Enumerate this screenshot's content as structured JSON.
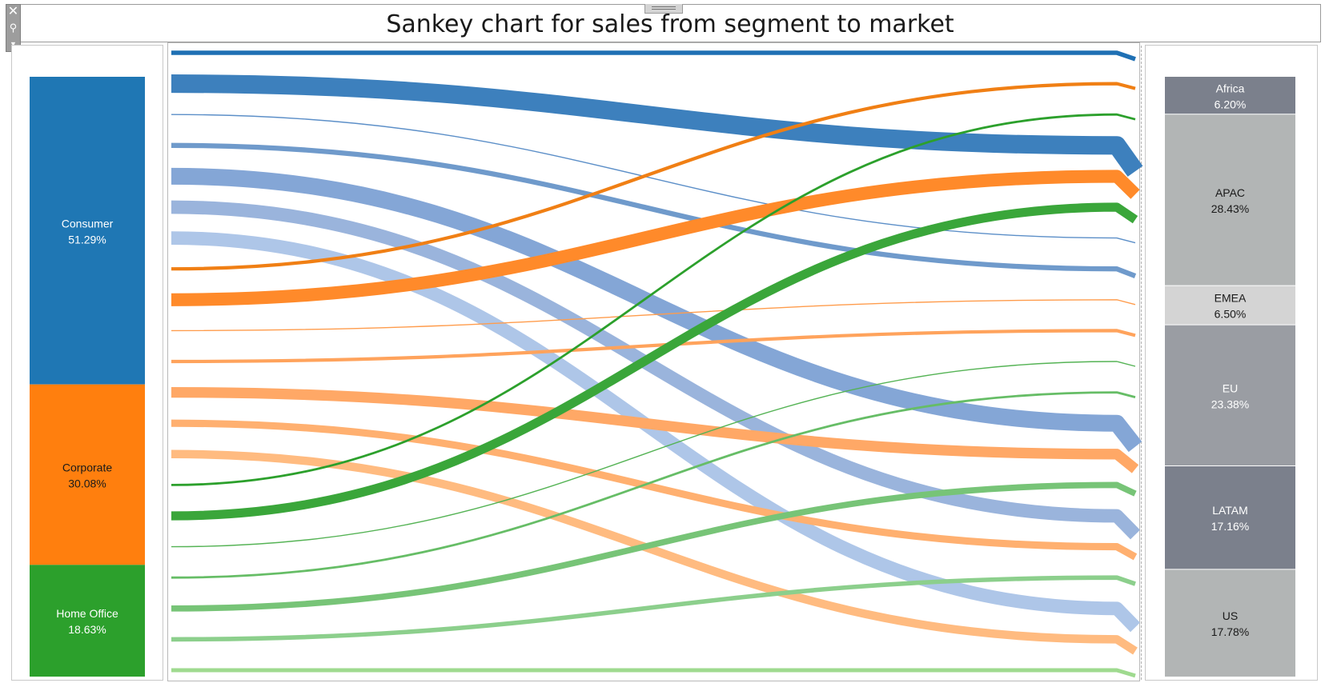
{
  "title": "Sankey chart for sales from segment to market",
  "toolbar": {
    "close_glyph": "✕",
    "pin_glyph": "⚲",
    "menu_glyph": "▼"
  },
  "chart_data": {
    "type": "sankey",
    "title": "Sankey chart for sales from segment to market",
    "sources": [
      {
        "name": "Consumer",
        "value": 51.29,
        "label": "51.29%",
        "color": "#1f77b4",
        "text_color": "#ffffff"
      },
      {
        "name": "Corporate",
        "value": 30.08,
        "label": "30.08%",
        "color": "#ff7f0e",
        "text_color": "#1a1a1a"
      },
      {
        "name": "Home Office",
        "value": 18.63,
        "label": "18.63%",
        "color": "#2ca02c",
        "text_color": "#ffffff"
      }
    ],
    "targets": [
      {
        "name": "Africa",
        "value": 6.2,
        "label": "6.20%",
        "color": "#7b808c",
        "text_color": "#ffffff"
      },
      {
        "name": "APAC",
        "value": 28.43,
        "label": "28.43%",
        "color": "#b2b5b5",
        "text_color": "#1a1a1a"
      },
      {
        "name": "EMEA",
        "value": 6.5,
        "label": "6.50%",
        "color": "#d4d4d4",
        "text_color": "#1a1a1a"
      },
      {
        "name": "EU",
        "value": 23.38,
        "label": "23.38%",
        "color": "#9a9da3",
        "text_color": "#ffffff"
      },
      {
        "name": "LATAM",
        "value": 17.16,
        "label": "17.16%",
        "color": "#7b808c",
        "text_color": "#ffffff"
      },
      {
        "name": "US",
        "value": 17.78,
        "label": "17.78%",
        "color": "#b2b5b5",
        "text_color": "#1a1a1a"
      }
    ],
    "flows": [
      {
        "source": "Consumer",
        "target": "Africa",
        "value": 0.8,
        "color": "#1f70b4"
      },
      {
        "source": "Consumer",
        "target": "APAC",
        "value": 3.3,
        "color": "#3d80bd"
      },
      {
        "source": "Consumer",
        "target": "EMEA",
        "value": 0.2,
        "color": "#5c8fc8"
      },
      {
        "source": "Consumer",
        "target": "EMEA",
        "value": 0.9,
        "color": "#6f9acb"
      },
      {
        "source": "Consumer",
        "target": "EU",
        "value": 3.0,
        "color": "#84a6d6"
      },
      {
        "source": "Consumer",
        "target": "LATAM",
        "value": 2.4,
        "color": "#9ab4dc"
      },
      {
        "source": "Consumer",
        "target": "US",
        "value": 2.4,
        "color": "#aec6e8"
      },
      {
        "source": "Corporate",
        "target": "Africa",
        "value": 0.6,
        "color": "#f07f14"
      },
      {
        "source": "Corporate",
        "target": "APAC",
        "value": 2.3,
        "color": "#ff8a2a"
      },
      {
        "source": "Corporate",
        "target": "EMEA",
        "value": 0.2,
        "color": "#ff9c4c"
      },
      {
        "source": "Corporate",
        "target": "EMEA",
        "value": 0.6,
        "color": "#ffa35c"
      },
      {
        "source": "Corporate",
        "target": "EU",
        "value": 1.9,
        "color": "#ffa866"
      },
      {
        "source": "Corporate",
        "target": "LATAM",
        "value": 1.3,
        "color": "#ffb070"
      },
      {
        "source": "Corporate",
        "target": "US",
        "value": 1.5,
        "color": "#ffbb80"
      },
      {
        "source": "Home Office",
        "target": "Africa",
        "value": 0.4,
        "color": "#2ca02c"
      },
      {
        "source": "Home Office",
        "target": "APAC",
        "value": 1.6,
        "color": "#3aa63a"
      },
      {
        "source": "Home Office",
        "target": "EMEA",
        "value": 0.2,
        "color": "#55b355"
      },
      {
        "source": "Home Office",
        "target": "EMEA",
        "value": 0.4,
        "color": "#66bd66"
      },
      {
        "source": "Home Office",
        "target": "EU",
        "value": 1.1,
        "color": "#77c477"
      },
      {
        "source": "Home Office",
        "target": "LATAM",
        "value": 0.8,
        "color": "#8ccf8c"
      },
      {
        "source": "Home Office",
        "target": "US",
        "value": 0.7,
        "color": "#9fda8f"
      }
    ]
  }
}
